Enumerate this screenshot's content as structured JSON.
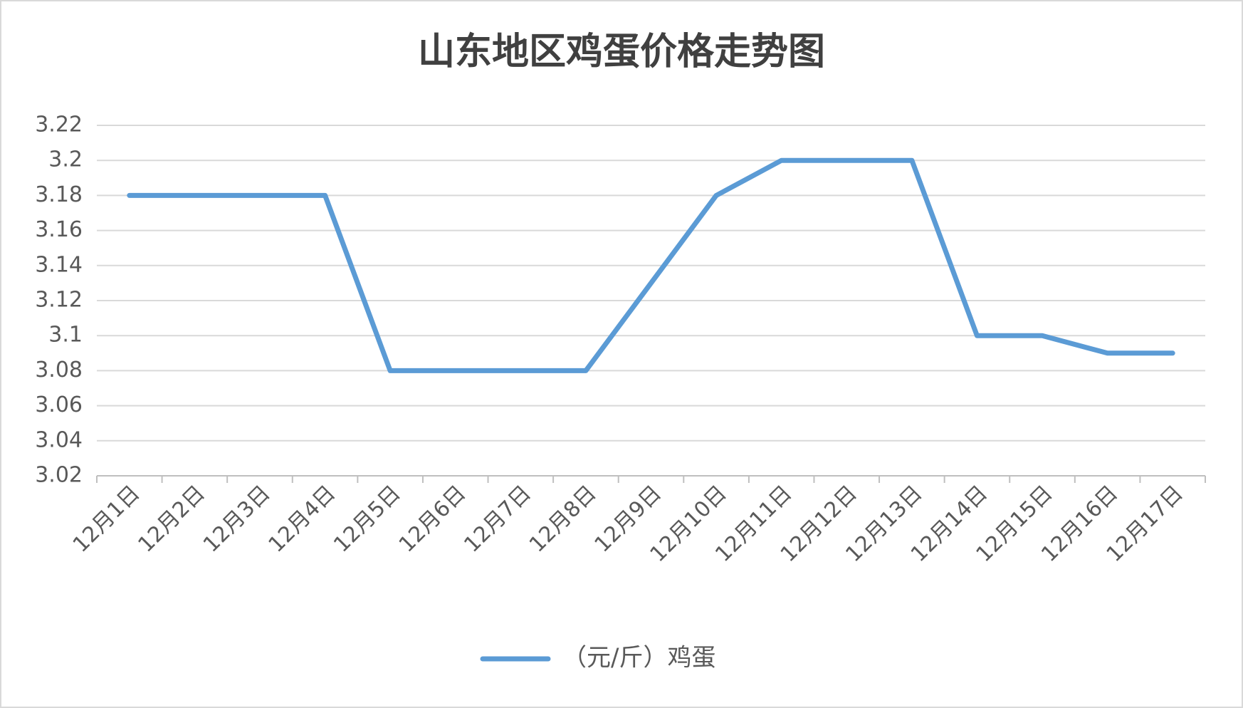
{
  "chart_data": {
    "type": "line",
    "title": "山东地区鸡蛋价格走势图",
    "categories": [
      "12月1日",
      "12月2日",
      "12月3日",
      "12月4日",
      "12月5日",
      "12月6日",
      "12月7日",
      "12月8日",
      "12月9日",
      "12月10日",
      "12月11日",
      "12月12日",
      "12月13日",
      "12月14日",
      "12月15日",
      "12月16日",
      "12月17日"
    ],
    "series": [
      {
        "name": "（元/斤）鸡蛋",
        "color": "#5b9bd5",
        "values": [
          3.18,
          3.18,
          3.18,
          3.18,
          3.08,
          3.08,
          3.08,
          3.08,
          3.13,
          3.18,
          3.2,
          3.2,
          3.2,
          3.1,
          3.1,
          3.09,
          3.09
        ]
      }
    ],
    "ylim": [
      3.02,
      3.22
    ],
    "yticks": [
      3.02,
      3.04,
      3.06,
      3.08,
      3.1,
      3.12,
      3.14,
      3.16,
      3.18,
      3.2,
      3.22
    ],
    "grid": true,
    "legend": "bottom"
  }
}
